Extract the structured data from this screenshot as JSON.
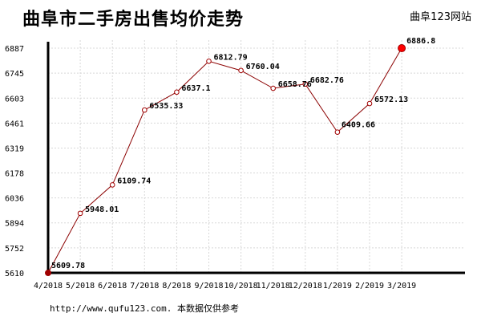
{
  "title": "曲阜市二手房出售均价走势",
  "brand": "曲阜123网站",
  "footer": "http://www.qufu123.com. 本数据仅供参考",
  "colors": {
    "line": "#8b0000",
    "point": "#a00000",
    "last_point": "#ff0000",
    "axis": "#000000"
  },
  "chart_data": {
    "type": "line",
    "title": "曲阜市二手房出售均价走势",
    "xlabel": "",
    "ylabel": "",
    "categories": [
      "4/2018",
      "5/2018",
      "6/2018",
      "7/2018",
      "8/2018",
      "9/2018",
      "10/2018",
      "11/2018",
      "12/2018",
      "1/2019",
      "2/2019",
      "3/2019"
    ],
    "series": [
      {
        "values": [
          5609.78,
          5948.01,
          6109.74,
          6535.33,
          6637.1,
          6812.79,
          6760.04,
          6658.76,
          6682.76,
          6409.66,
          6572.13,
          6886.8
        ]
      }
    ],
    "value_labels": [
      "5609.78",
      "5948.01",
      "6109.74",
      "6535.33",
      "6637.1",
      "6812.79",
      "6760.04",
      "6658.76",
      "6682.76",
      "6409.66",
      "6572.13",
      "6886.8"
    ],
    "yticks": [
      "5610",
      "5752",
      "5894",
      "6036",
      "6178",
      "6319",
      "6461",
      "6603",
      "6745",
      "6887"
    ],
    "ylim": [
      5610,
      6887
    ],
    "grid": true
  }
}
